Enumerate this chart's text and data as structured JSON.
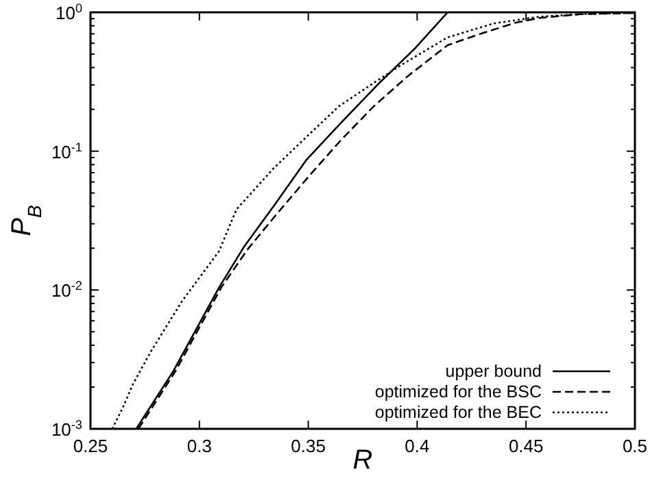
{
  "chart_data": {
    "type": "line",
    "xlabel": "R",
    "ylabel": "P$_{B}$",
    "log": "y",
    "xlim": [
      0.25,
      0.5
    ],
    "ylim": [
      0.001,
      1
    ],
    "xticks": [
      0.25,
      0.3,
      0.35,
      0.4,
      0.45,
      0.5
    ],
    "yticks": [
      {
        "value": 0.001,
        "label": "10$^{-3}$"
      },
      {
        "value": 0.01,
        "label": "10$^{-2}$"
      },
      {
        "value": 0.1,
        "label": "10$^{-1}$"
      },
      {
        "value": 1,
        "label": "10$^{0}$"
      }
    ],
    "grid": false,
    "legend": "bottom right",
    "series": [
      {
        "name": "upper bound",
        "color": "#000000",
        "line_style": "solid",
        "x": [
          0.271,
          0.288,
          0.309,
          0.3205,
          0.335,
          0.349,
          0.365,
          0.383,
          0.399,
          0.414
        ],
        "values": [
          0.001,
          0.0026,
          0.0104,
          0.0205,
          0.042,
          0.086,
          0.16,
          0.314,
          0.55,
          1
        ]
      },
      {
        "name": "optimized for the BSC",
        "color": "#000000",
        "line_style": "dashed",
        "x": [
          0.272,
          0.289,
          0.31,
          0.322,
          0.336,
          0.351,
          0.365,
          0.38,
          0.396,
          0.414,
          0.429,
          0.445,
          0.456,
          0.475,
          0.5
        ],
        "values": [
          0.001,
          0.0026,
          0.0104,
          0.0195,
          0.036,
          0.068,
          0.12,
          0.21,
          0.35,
          0.58,
          0.7,
          0.84,
          0.91,
          0.97,
          0.99
        ]
      },
      {
        "name": "optimized for the BEC",
        "color": "#000000",
        "line_style": "dotted",
        "x": [
          0.26,
          0.265,
          0.2695,
          0.2777,
          0.292,
          0.309,
          0.317,
          0.334,
          0.349,
          0.364,
          0.38,
          0.393,
          0.414,
          0.435,
          0.456,
          0.475,
          0.5
        ],
        "values": [
          0.001,
          0.00144,
          0.0021,
          0.0036,
          0.0083,
          0.019,
          0.038,
          0.075,
          0.126,
          0.21,
          0.31,
          0.42,
          0.66,
          0.83,
          0.93,
          0.97,
          0.99
        ]
      }
    ]
  }
}
